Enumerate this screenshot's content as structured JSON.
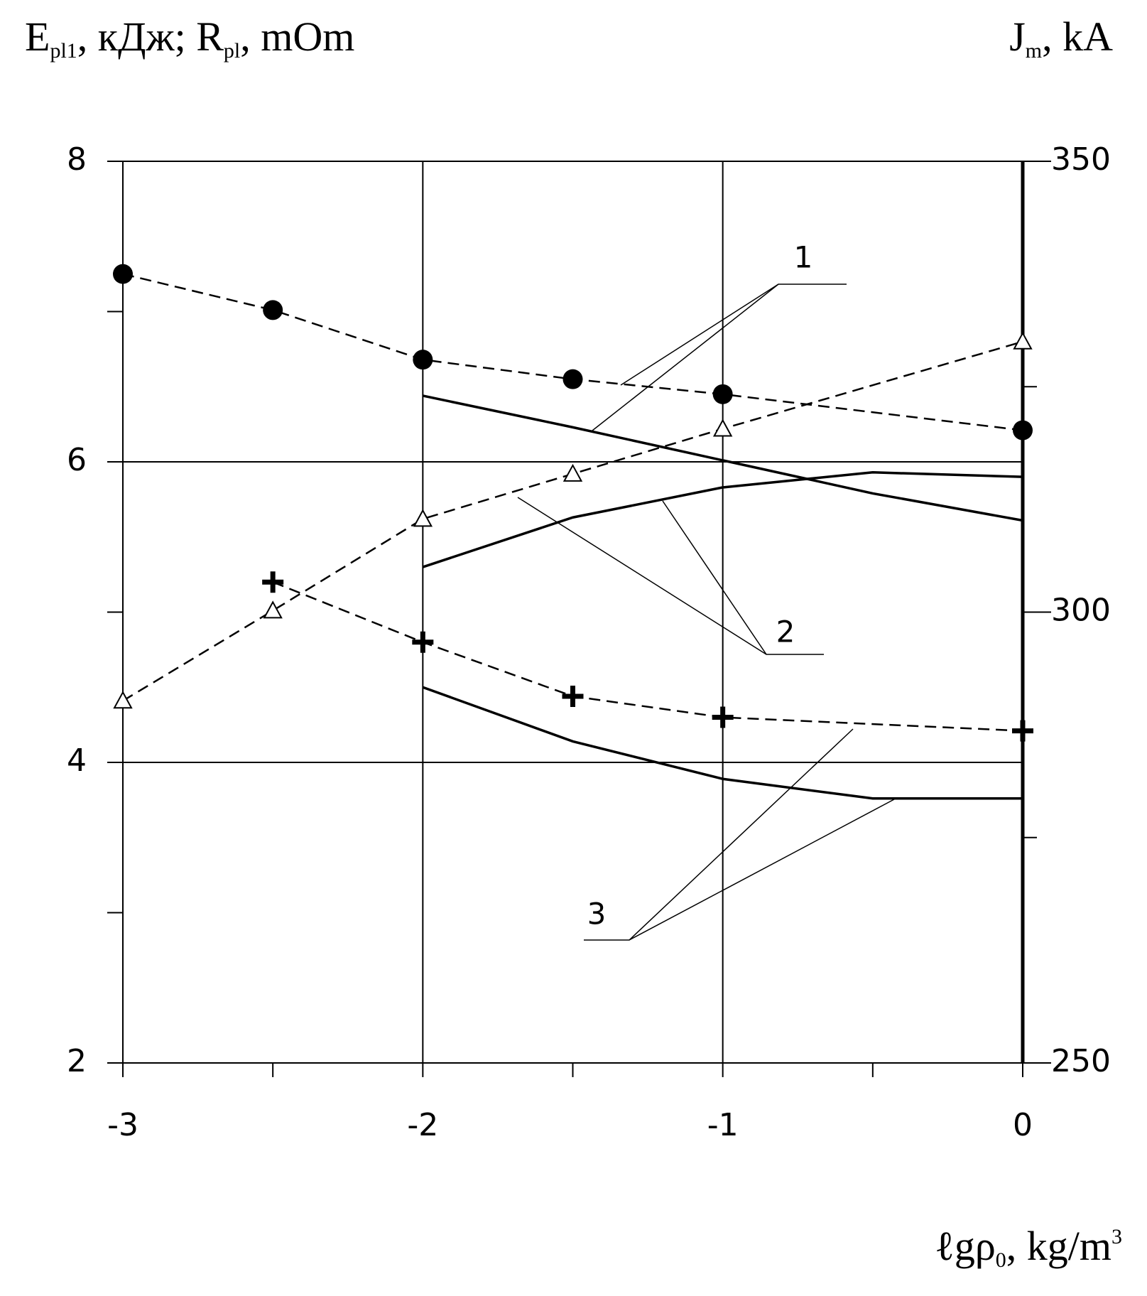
{
  "chart_data": {
    "type": "line",
    "y_label": [
      "E",
      "pl1",
      ", кДж; R",
      "pl",
      ", mOm"
    ],
    "y2_label": [
      "J",
      "m",
      ", kA"
    ],
    "x_label": [
      "ℓgρ",
      "0",
      ", kg/m",
      "3"
    ],
    "xlim": [
      -3,
      0
    ],
    "xticks": [
      -3,
      -2,
      -1,
      0
    ],
    "xminor": [
      -2.5,
      -1.5,
      -0.5
    ],
    "ylim": [
      2,
      8
    ],
    "yticks": [
      2,
      4,
      6,
      8
    ],
    "yminor": [
      3,
      5,
      7
    ],
    "y2lim": [
      250,
      350
    ],
    "y2ticks": [
      250,
      300,
      350
    ],
    "y2minor": [
      275,
      325
    ],
    "grid": true,
    "series": [
      {
        "marker": "circle",
        "dashed": true,
        "color": "#000",
        "x": [
          -3,
          -2.5,
          -2,
          -1.5,
          -1,
          0
        ],
        "values": [
          7.25,
          7.01,
          6.68,
          6.55,
          6.45,
          6.21
        ]
      },
      {
        "marker": "triangle",
        "dashed": true,
        "color": "#000",
        "x": [
          -3,
          -2.5,
          -2,
          -1.5,
          -1,
          0
        ],
        "values": [
          4.41,
          5.01,
          5.62,
          5.92,
          6.22,
          6.8
        ]
      },
      {
        "marker": "plus",
        "dashed": true,
        "color": "#000",
        "x": [
          -2.5,
          -2,
          -1.5,
          -1,
          0
        ],
        "values": [
          5.2,
          4.8,
          4.44,
          4.3,
          4.21
        ]
      },
      {
        "marker": "none",
        "dashed": false,
        "color": "#000",
        "x": [
          -2,
          -1.5,
          -1,
          -0.5,
          0
        ],
        "values": [
          6.44,
          6.23,
          6.01,
          5.79,
          5.61
        ]
      },
      {
        "marker": "none",
        "dashed": false,
        "color": "#000",
        "x": [
          -2,
          -1.5,
          -1,
          -0.5,
          0
        ],
        "values": [
          5.3,
          5.63,
          5.83,
          5.93,
          5.9
        ]
      },
      {
        "marker": "none",
        "dashed": false,
        "color": "#000",
        "x": [
          -2,
          -1.5,
          -1,
          -0.5,
          0
        ],
        "values": [
          4.5,
          4.14,
          3.89,
          3.76,
          3.76
        ]
      }
    ],
    "annotations": [
      "1",
      "2",
      "3"
    ]
  }
}
